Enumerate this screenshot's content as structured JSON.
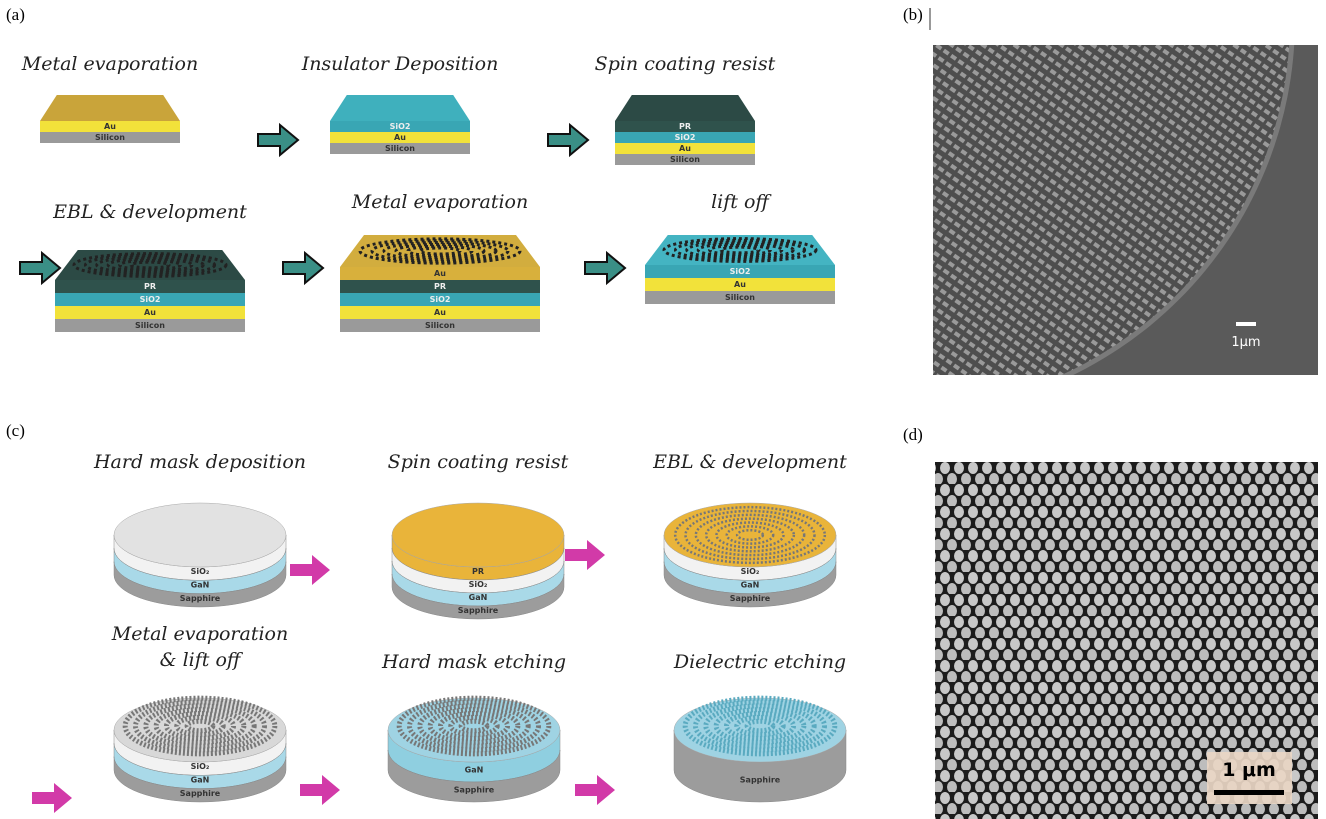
{
  "panels": [
    {
      "label": "(a)",
      "steps": [
        {
          "title": [
            "Metal evaporation"
          ],
          "top_color": "#c9a43a",
          "patterned": false,
          "layers": [
            {
              "name": "Au",
              "color": "#f2e23a"
            },
            {
              "name": "Silicon",
              "color": "#9a9a9a"
            }
          ]
        },
        {
          "title": [
            "Insulator Deposition"
          ],
          "top_color": "#3fb0bd",
          "patterned": false,
          "layers": [
            {
              "name": "SiO2",
              "color": "#39a6b4"
            },
            {
              "name": "Au",
              "color": "#f2e23a"
            },
            {
              "name": "Silicon",
              "color": "#9a9a9a"
            }
          ]
        },
        {
          "title": [
            "Spin coating resist"
          ],
          "top_color": "#2c4a45",
          "patterned": false,
          "layers": [
            {
              "name": "PR",
              "color": "#2f524c"
            },
            {
              "name": "SiO2",
              "color": "#39a6b4"
            },
            {
              "name": "Au",
              "color": "#f2e23a"
            },
            {
              "name": "Silicon",
              "color": "#9a9a9a"
            }
          ]
        },
        {
          "title": [
            "EBL & development"
          ],
          "top_color": "#2c4a45",
          "patterned": true,
          "layers": [
            {
              "name": "PR",
              "color": "#2f524c"
            },
            {
              "name": "SiO2",
              "color": "#39a6b4"
            },
            {
              "name": "Au",
              "color": "#f2e23a"
            },
            {
              "name": "Silicon",
              "color": "#9a9a9a"
            }
          ]
        },
        {
          "title": [
            "Metal evaporation"
          ],
          "top_color": "#d2ad3e",
          "patterned": true,
          "layers": [
            {
              "name": "Au",
              "color": "#d8b03c"
            },
            {
              "name": "PR",
              "color": "#2f524c"
            },
            {
              "name": "SiO2",
              "color": "#39a6b4"
            },
            {
              "name": "Au",
              "color": "#f2e23a"
            },
            {
              "name": "Silicon",
              "color": "#9a9a9a"
            }
          ]
        },
        {
          "title": [
            "lift off"
          ],
          "top_color": "#44b4c2",
          "patterned": true,
          "layers": [
            {
              "name": "SiO2",
              "color": "#39a6b4"
            },
            {
              "name": "Au",
              "color": "#f2e23a"
            },
            {
              "name": "Silicon",
              "color": "#9a9a9a"
            }
          ]
        }
      ]
    },
    {
      "label": "(b)",
      "scale_bar": "1μm"
    },
    {
      "label": "(c)",
      "steps": [
        {
          "title": [
            "Hard mask deposition"
          ],
          "top_color": "#e2e2e2",
          "patterned": false,
          "layers": [
            {
              "name": "SiO₂",
              "color": "#f2f2f2"
            },
            {
              "name": "GaN",
              "color": "#a9d9e8"
            },
            {
              "name": "Sapphire",
              "color": "#9c9c9c"
            }
          ]
        },
        {
          "title": [
            "Spin coating resist"
          ],
          "top_color": "#e9b43a",
          "patterned": false,
          "layers": [
            {
              "name": "PR",
              "color": "#e9b43a"
            },
            {
              "name": "SiO₂",
              "color": "#f2f2f2"
            },
            {
              "name": "GaN",
              "color": "#a9d9e8"
            },
            {
              "name": "Sapphire",
              "color": "#9c9c9c"
            }
          ]
        },
        {
          "title": [
            "EBL & development"
          ],
          "top_color": "#e9b43a",
          "patterned": true,
          "layers": [
            {
              "name": "SiO₂",
              "color": "#f2f2f2"
            },
            {
              "name": "GaN",
              "color": "#a9d9e8"
            },
            {
              "name": "Sapphire",
              "color": "#9c9c9c"
            }
          ]
        },
        {
          "title": [
            "Metal evaporation",
            "& lift off"
          ],
          "top_color": "#d8d8d8",
          "patterned": true,
          "layers": [
            {
              "name": "SiO₂",
              "color": "#f2f2f2"
            },
            {
              "name": "GaN",
              "color": "#a9d9e8"
            },
            {
              "name": "Sapphire",
              "color": "#9c9c9c"
            }
          ]
        },
        {
          "title": [
            "Hard mask etching"
          ],
          "top_color": "#9fd3e3",
          "patterned": true,
          "layers": [
            {
              "name": "GaN",
              "color": "#8fcfe0"
            },
            {
              "name": "Sapphire",
              "color": "#9c9c9c"
            }
          ]
        },
        {
          "title": [
            "Dielectric etching"
          ],
          "top_color": "#9fd3e3",
          "patterned": true,
          "layers": [
            {
              "name": "Sapphire",
              "color": "#9c9c9c"
            }
          ]
        }
      ]
    },
    {
      "label": "(d)",
      "scale_bar": "1 μm"
    }
  ]
}
